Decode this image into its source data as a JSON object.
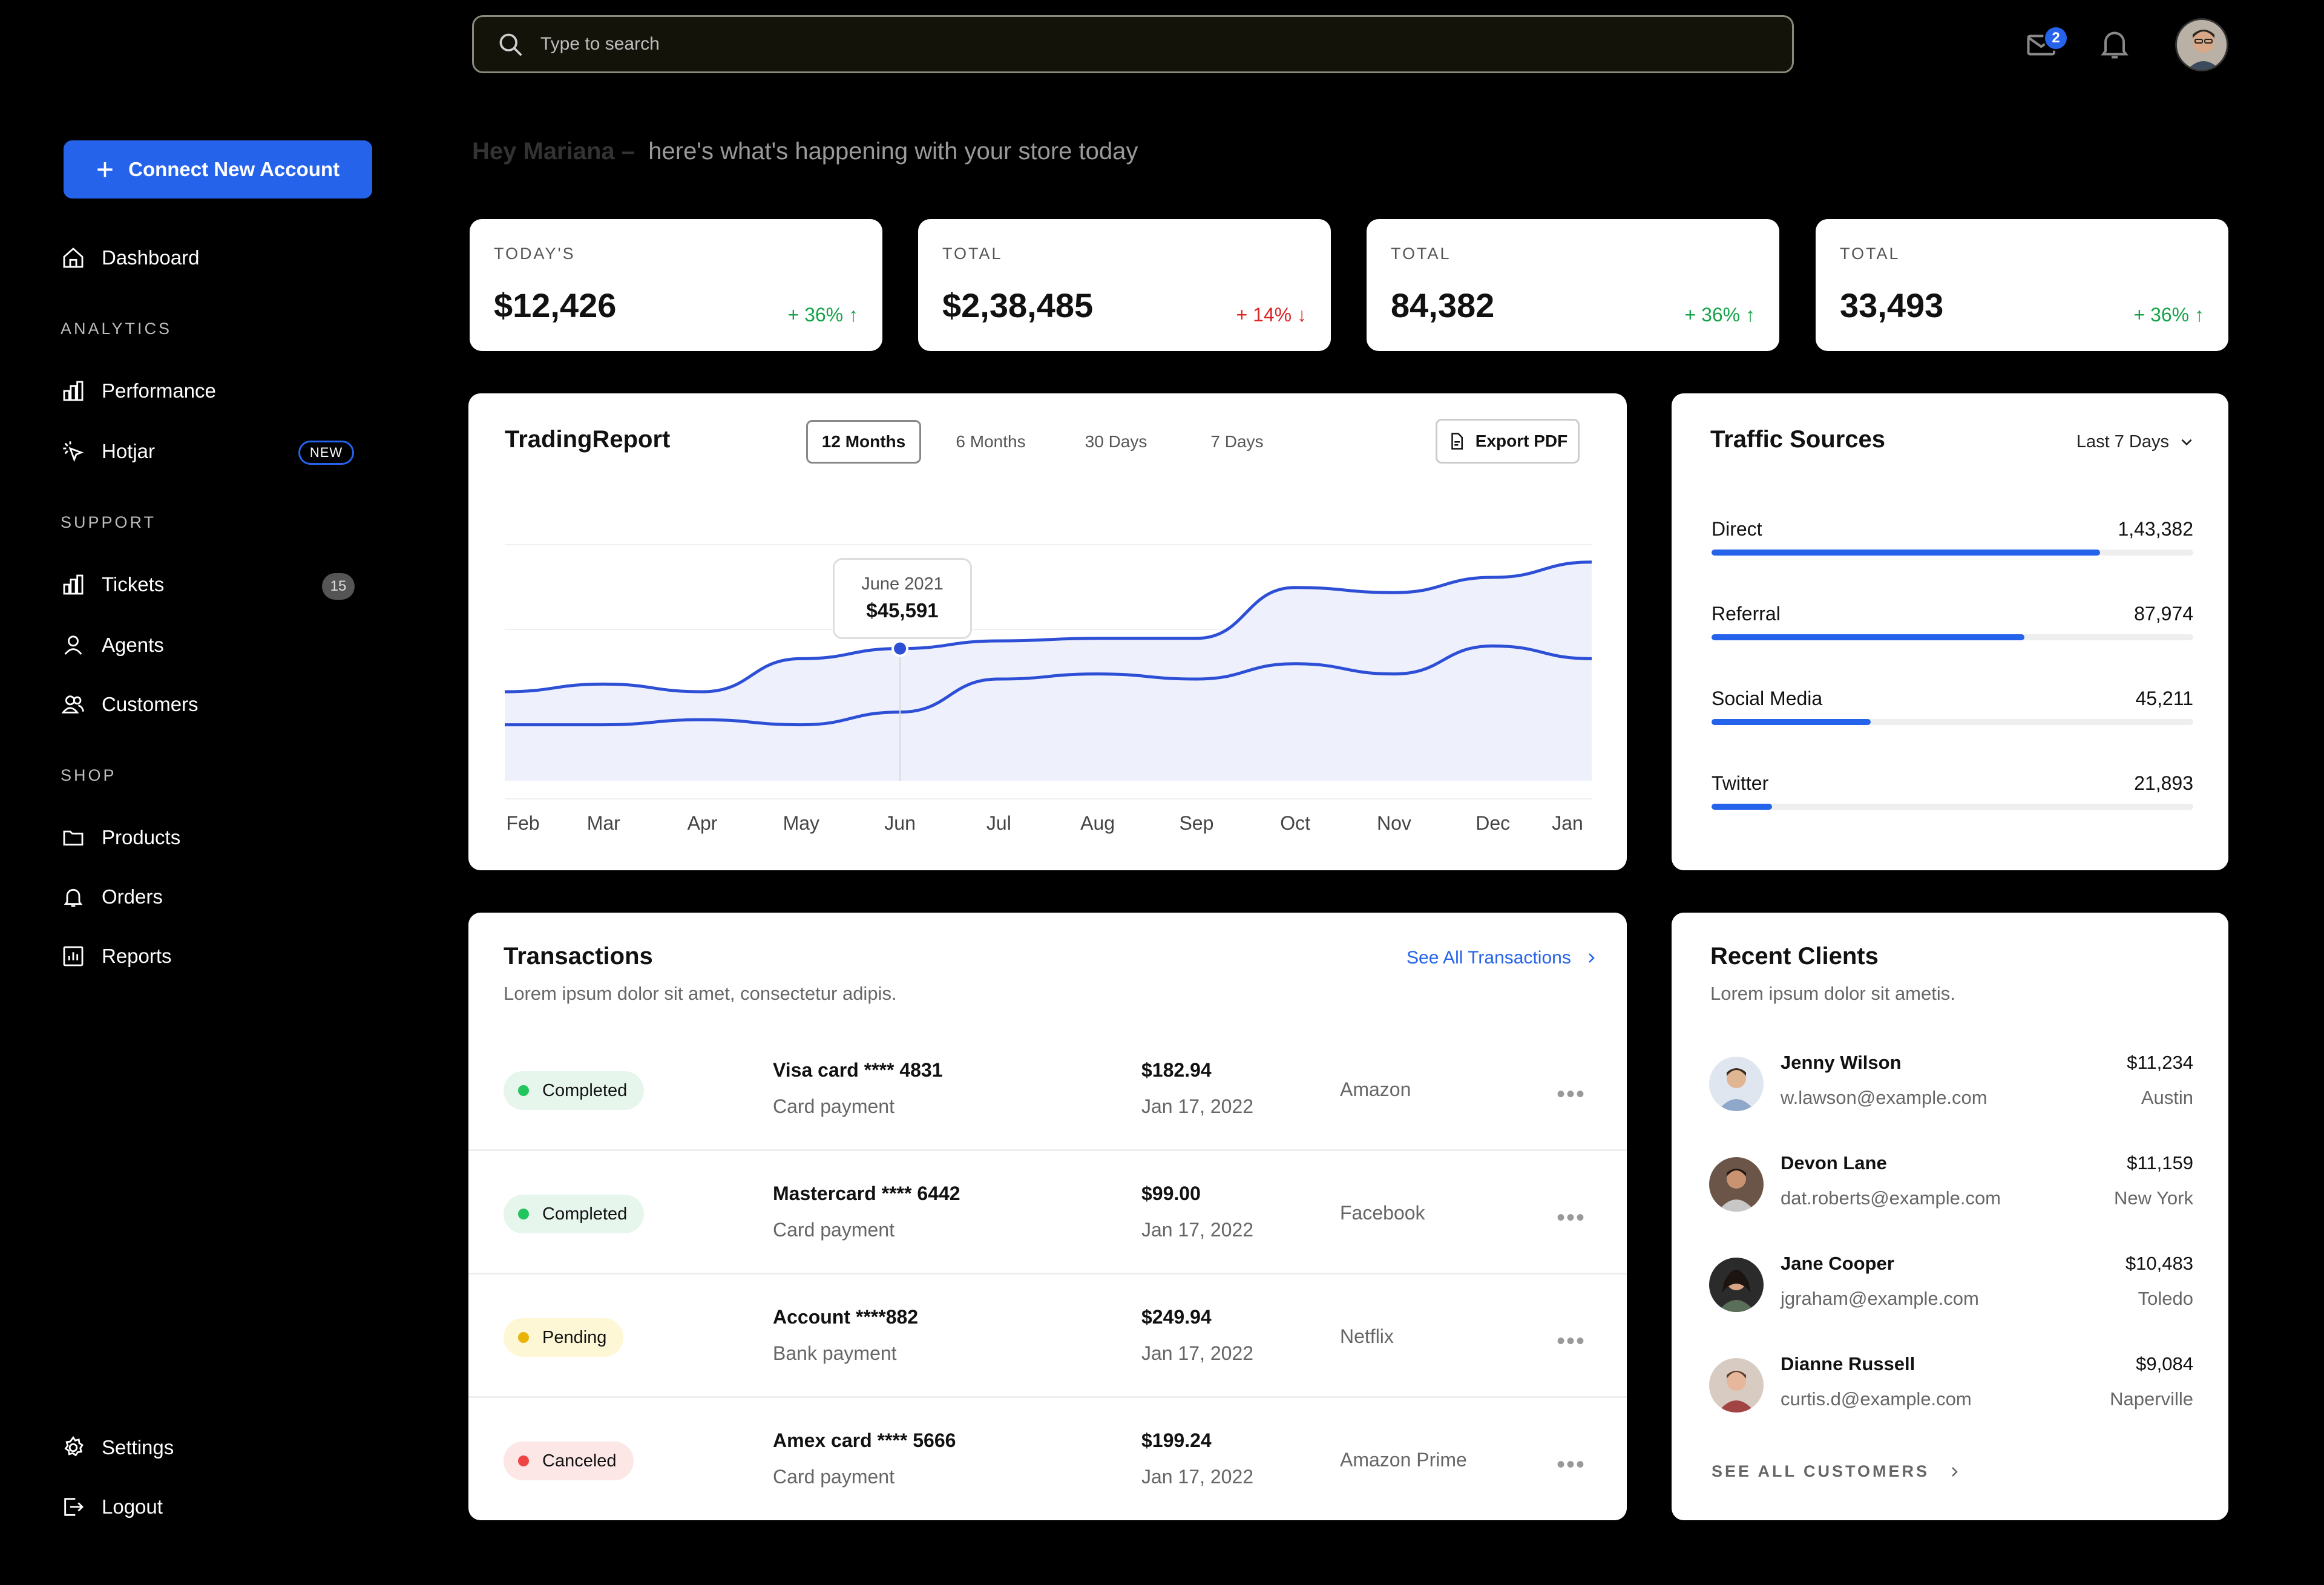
{
  "header": {
    "search_placeholder": "Type to search",
    "mail_count": "2"
  },
  "sidebar": {
    "connect_label": "Connect New Account",
    "dashboard": "Dashboard",
    "analytics_heading": "ANALYTICS",
    "performance": "Performance",
    "hotjar": "Hotjar",
    "hotjar_badge": "NEW",
    "support_heading": "SUPPORT",
    "tickets": "Tickets",
    "tickets_count": "15",
    "agents": "Agents",
    "customers": "Customers",
    "shop_heading": "SHOP",
    "products": "Products",
    "orders": "Orders",
    "reports": "Reports",
    "settings": "Settings",
    "logout": "Logout"
  },
  "greeting": {
    "name": "Hey Mariana –",
    "message": "here's what's happening with your store today"
  },
  "stats": [
    {
      "label": "TODAY'S",
      "value": "$12,426",
      "change": "+ 36%",
      "direction": "up"
    },
    {
      "label": "TOTAL",
      "value": "$2,38,485",
      "change": "+ 14%",
      "direction": "down"
    },
    {
      "label": "TOTAL",
      "value": "84,382",
      "change": "+ 36%",
      "direction": "up"
    },
    {
      "label": "TOTAL",
      "value": "33,493",
      "change": "+ 36%",
      "direction": "up"
    }
  ],
  "trading": {
    "title": "TradingReport",
    "tabs": [
      "12 Months",
      "6 Months",
      "30 Days",
      "7 Days"
    ],
    "active_tab": "12 Months",
    "export_label": "Export PDF",
    "tooltip_month": "June 2021",
    "tooltip_value": "$45,591"
  },
  "chart_data": {
    "type": "line",
    "categories": [
      "Feb",
      "Mar",
      "Apr",
      "May",
      "Jun",
      "Jul",
      "Aug",
      "Sep",
      "Oct",
      "Nov",
      "Dec",
      "Jan"
    ],
    "series": [
      {
        "values": [
          0.35,
          0.38,
          0.35,
          0.48,
          0.52,
          0.55,
          0.56,
          0.56,
          0.76,
          0.74,
          0.8,
          0.86
        ]
      },
      {
        "values": [
          0.22,
          0.22,
          0.24,
          0.22,
          0.27,
          0.4,
          0.42,
          0.4,
          0.46,
          0.42,
          0.53,
          0.48
        ]
      }
    ],
    "highlight": {
      "category": "Jun",
      "series": 0
    },
    "colors": {
      "line": "#2d4fd6",
      "fill": "#eef0fb"
    },
    "grid": true
  },
  "traffic": {
    "title": "Traffic Sources",
    "range": "Last 7 Days",
    "sources": [
      {
        "name": "Direct",
        "value": "1,43,382",
        "share": 0.806
      },
      {
        "name": "Referral",
        "value": "87,974",
        "share": 0.65
      },
      {
        "name": "Social Media",
        "value": "45,211",
        "share": 0.33
      },
      {
        "name": "Twitter",
        "value": "21,893",
        "share": 0.125
      }
    ]
  },
  "transactions": {
    "title": "Transactions",
    "subtitle": "Lorem ipsum dolor sit amet, consectetur adipis.",
    "see_all": "See All Transactions",
    "rows": [
      {
        "status": "Completed",
        "status_type": "completed",
        "card": "Visa card  **** 4831",
        "method": "Card payment",
        "amount": "$182.94",
        "date": "Jan 17, 2022",
        "merchant": "Amazon"
      },
      {
        "status": "Completed",
        "status_type": "completed",
        "card": "Mastercard  **** 6442",
        "method": "Card payment",
        "amount": "$99.00",
        "date": "Jan 17, 2022",
        "merchant": "Facebook"
      },
      {
        "status": "Pending",
        "status_type": "pending",
        "card": "Account  ****882",
        "method": "Bank payment",
        "amount": "$249.94",
        "date": "Jan 17, 2022",
        "merchant": "Netflix"
      },
      {
        "status": "Canceled",
        "status_type": "canceled",
        "card": "Amex card  **** 5666",
        "method": "Card payment",
        "amount": "$199.24",
        "date": "Jan 17, 2022",
        "merchant": "Amazon Prime"
      }
    ]
  },
  "clients": {
    "title": "Recent Clients",
    "subtitle": "Lorem ipsum dolor sit ametis.",
    "see_all": "SEE ALL CUSTOMERS",
    "rows": [
      {
        "name": "Jenny Wilson",
        "email": "w.lawson@example.com",
        "amount": "$11,234",
        "city": "Austin"
      },
      {
        "name": "Devon Lane",
        "email": "dat.roberts@example.com",
        "amount": "$11,159",
        "city": "New York"
      },
      {
        "name": "Jane Cooper",
        "email": "jgraham@example.com",
        "amount": "$10,483",
        "city": "Toledo"
      },
      {
        "name": "Dianne Russell",
        "email": "curtis.d@example.com",
        "amount": "$9,084",
        "city": "Naperville"
      }
    ]
  }
}
